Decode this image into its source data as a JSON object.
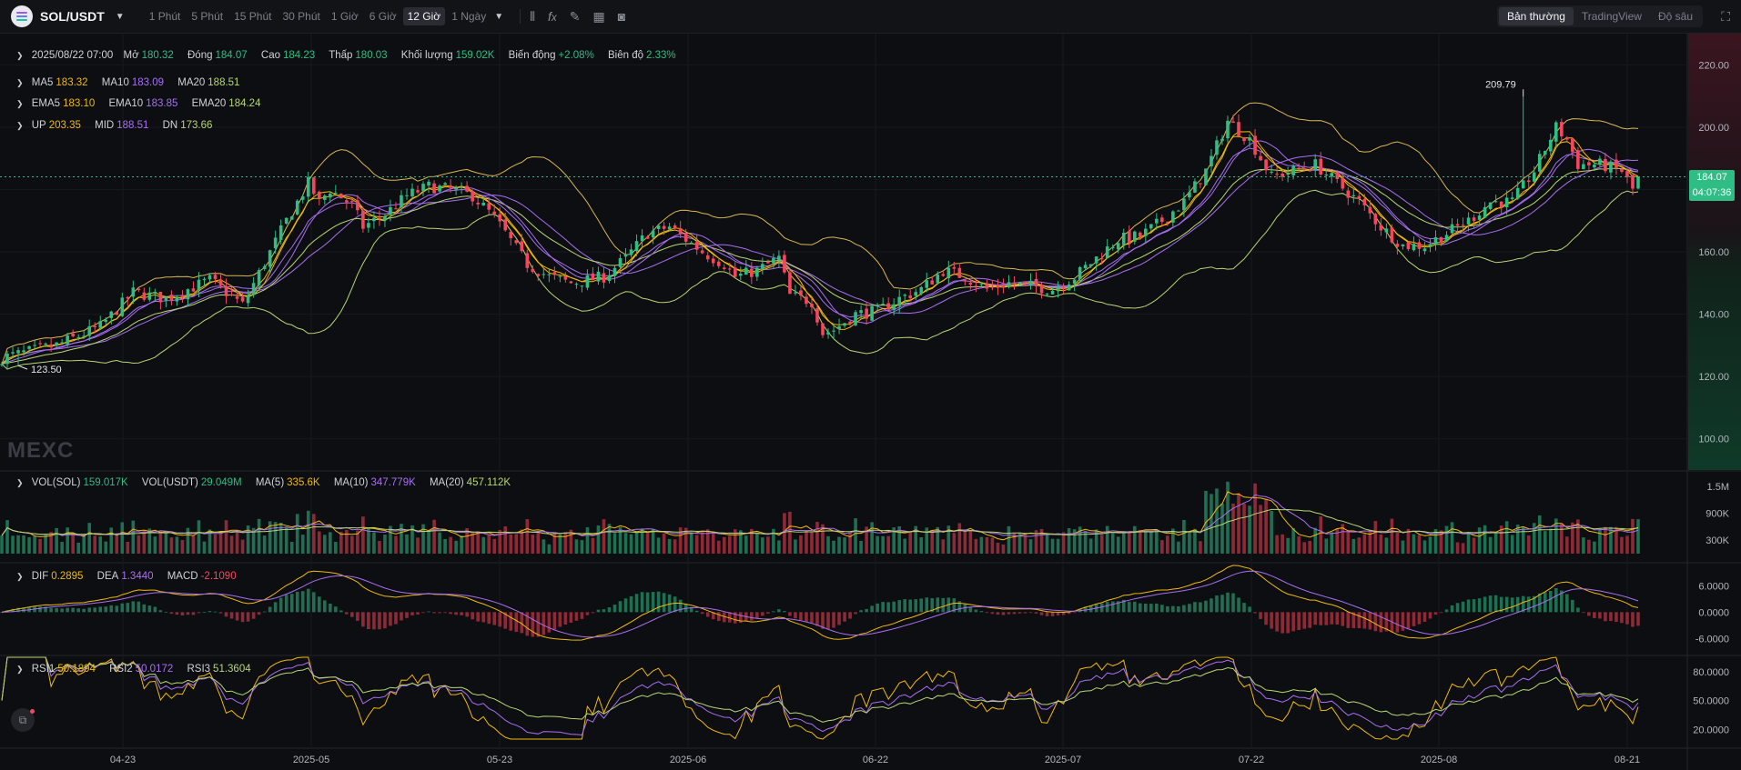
{
  "header": {
    "symbol": "SOL/USDT",
    "intervals": [
      "1 Phút",
      "5 Phút",
      "15 Phút",
      "30 Phút",
      "1 Giờ",
      "6 Giờ",
      "12 Giờ",
      "1 Ngày"
    ],
    "active_interval": "12 Giờ",
    "views": [
      "Bản thường",
      "TradingView",
      "Độ sâu"
    ],
    "active_view": "Bản thường"
  },
  "ohlc": {
    "datetime": "2025/08/22 07:00",
    "open_label": "Mở",
    "open": "180.32",
    "close_label": "Đóng",
    "close": "184.07",
    "high_label": "Cao",
    "high": "184.23",
    "low_label": "Thấp",
    "low": "180.03",
    "volume_label": "Khối lượng",
    "volume": "159.02K",
    "change_label": "Biến động",
    "change": "+2.08%",
    "amplitude_label": "Biên độ",
    "amplitude": "2.33%"
  },
  "indicators": {
    "ma": [
      {
        "label": "MA5",
        "value": "183.32"
      },
      {
        "label": "MA10",
        "value": "183.09"
      },
      {
        "label": "MA20",
        "value": "188.51"
      }
    ],
    "ema": [
      {
        "label": "EMA5",
        "value": "183.10"
      },
      {
        "label": "EMA10",
        "value": "183.85"
      },
      {
        "label": "EMA20",
        "value": "184.24"
      }
    ],
    "boll": [
      {
        "label": "UP",
        "value": "203.35"
      },
      {
        "label": "MID",
        "value": "188.51"
      },
      {
        "label": "DN",
        "value": "173.66"
      }
    ],
    "vol": [
      {
        "label": "VOL(SOL)",
        "value": "159.017K"
      },
      {
        "label": "VOL(USDT)",
        "value": "29.049M"
      },
      {
        "label": "MA(5)",
        "value": "335.6K"
      },
      {
        "label": "MA(10)",
        "value": "347.779K"
      },
      {
        "label": "MA(20)",
        "value": "457.112K"
      }
    ],
    "macd": [
      {
        "label": "DIF",
        "value": "0.2895"
      },
      {
        "label": "DEA",
        "value": "1.3440"
      },
      {
        "label": "MACD",
        "value": "-2.1090"
      }
    ],
    "rsi": [
      {
        "label": "RSI1",
        "value": "50.1894"
      },
      {
        "label": "RSI2",
        "value": "50.0172"
      },
      {
        "label": "RSI3",
        "value": "51.3604"
      }
    ]
  },
  "last_price": {
    "price": "184.07",
    "countdown": "04:07:36"
  },
  "watermark": "MEXC",
  "colors": {
    "up": "#2ebd85",
    "down": "#f6465d",
    "ma5": "#f0b90b",
    "ma10": "#a770ef",
    "ma20": "#b7d773",
    "boll": "#d9b653"
  },
  "chart_data": {
    "type": "candlestick",
    "price_axis": {
      "ylim": [
        90,
        230
      ],
      "ticks": [
        "220.00",
        "200.00",
        "180.00",
        "160.00",
        "140.00",
        "120.00",
        "100.00"
      ]
    },
    "volume_axis": {
      "ylim": [
        0,
        1800000
      ],
      "ticks": [
        "1.5M",
        "900K",
        "300K"
      ]
    },
    "macd_axis": {
      "ylim": [
        -9,
        11
      ],
      "ticks": [
        "6.0000",
        "0.0000",
        "-6.0000"
      ]
    },
    "rsi_axis": {
      "ylim": [
        10,
        95
      ],
      "ticks": [
        "80.0000",
        "50.0000",
        "20.0000"
      ]
    },
    "x_ticks": [
      "04-23",
      "2025-05",
      "05-23",
      "2025-06",
      "06-22",
      "2025-07",
      "07-22",
      "2025-08",
      "08-21"
    ],
    "annotations": [
      {
        "label": "209.79",
        "type": "max"
      },
      {
        "label": "123.50",
        "type": "min"
      }
    ],
    "close_path": [
      [
        0,
        126
      ],
      [
        10,
        130
      ],
      [
        18,
        136
      ],
      [
        24,
        147
      ],
      [
        30,
        145
      ],
      [
        34,
        148
      ],
      [
        38,
        151
      ],
      [
        44,
        143
      ],
      [
        52,
        170
      ],
      [
        56,
        182
      ],
      [
        58,
        176
      ],
      [
        60,
        180
      ],
      [
        64,
        175
      ],
      [
        66,
        168
      ],
      [
        70,
        172
      ],
      [
        74,
        178
      ],
      [
        78,
        181
      ],
      [
        82,
        180
      ],
      [
        86,
        178
      ],
      [
        90,
        171
      ],
      [
        96,
        156
      ],
      [
        100,
        152
      ],
      [
        104,
        150
      ],
      [
        110,
        152
      ],
      [
        114,
        158
      ],
      [
        118,
        166
      ],
      [
        122,
        168
      ],
      [
        128,
        160
      ],
      [
        132,
        156
      ],
      [
        134,
        152
      ],
      [
        138,
        154
      ],
      [
        142,
        158
      ],
      [
        144,
        146
      ],
      [
        148,
        144
      ],
      [
        150,
        134
      ],
      [
        152,
        135
      ],
      [
        156,
        140
      ],
      [
        160,
        141
      ],
      [
        164,
        145
      ],
      [
        168,
        148
      ],
      [
        172,
        154
      ],
      [
        176,
        152
      ],
      [
        180,
        148
      ],
      [
        184,
        150
      ],
      [
        188,
        149
      ],
      [
        192,
        148
      ],
      [
        196,
        152
      ],
      [
        200,
        158
      ],
      [
        204,
        164
      ],
      [
        208,
        165
      ],
      [
        212,
        170
      ],
      [
        216,
        176
      ],
      [
        220,
        186
      ],
      [
        224,
        202
      ],
      [
        228,
        196
      ],
      [
        232,
        184
      ],
      [
        236,
        186
      ],
      [
        240,
        188
      ],
      [
        244,
        182
      ],
      [
        248,
        176
      ],
      [
        252,
        168
      ],
      [
        256,
        162
      ],
      [
        260,
        162
      ],
      [
        264,
        166
      ],
      [
        268,
        170
      ],
      [
        272,
        176
      ],
      [
        276,
        176
      ],
      [
        280,
        186
      ],
      [
        284,
        200
      ],
      [
        286,
        196
      ],
      [
        288,
        188
      ],
      [
        292,
        188
      ],
      [
        296,
        186
      ],
      [
        298,
        180
      ],
      [
        300,
        183
      ]
    ],
    "max_price": 209.79,
    "min_price": 123.5
  }
}
